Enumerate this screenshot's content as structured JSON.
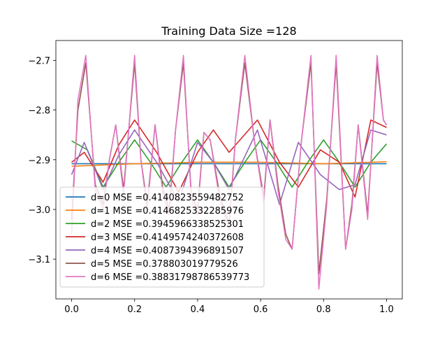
{
  "chart_data": {
    "type": "line",
    "title": "Training Data Size =128",
    "xlabel": "",
    "ylabel": "",
    "xlim": [
      -0.05,
      1.05
    ],
    "ylim": [
      -3.18,
      -2.66
    ],
    "xticks": [
      "0.0",
      "0.2",
      "0.4",
      "0.6",
      "0.8",
      "1.0"
    ],
    "xtick_values": [
      0.0,
      0.2,
      0.4,
      0.6,
      0.8,
      1.0
    ],
    "yticks": [
      "−2.7",
      "−2.8",
      "−2.9",
      "−3.0",
      "−3.1"
    ],
    "ytick_values": [
      -2.7,
      -2.8,
      -2.9,
      -3.0,
      -3.1
    ],
    "grid": false,
    "legend_position": "lower-left",
    "series": [
      {
        "name": "d=0 MSE =0.4140823559482752",
        "color": "#1f77b4",
        "x": [
          0.0,
          0.25,
          0.5,
          0.75,
          1.0
        ],
        "y": [
          -2.908,
          -2.908,
          -2.908,
          -2.908,
          -2.908
        ]
      },
      {
        "name": "d=1 MSE =0.414682533228597​6",
        "color": "#ff7f0e",
        "x": [
          0.0,
          0.2,
          0.4,
          0.6,
          0.8,
          1.0
        ],
        "y": [
          -2.913,
          -2.908,
          -2.905,
          -2.905,
          -2.908,
          -2.904
        ]
      },
      {
        "name": "d=2 MSE =0.3945966338525301",
        "color": "#2ca02c",
        "x": [
          0.0,
          0.05,
          0.1,
          0.15,
          0.2,
          0.25,
          0.3,
          0.35,
          0.4,
          0.45,
          0.5,
          0.55,
          0.6,
          0.65,
          0.7,
          0.75,
          0.8,
          0.85,
          0.9,
          0.95,
          1.0
        ],
        "y": [
          -2.862,
          -2.88,
          -2.955,
          -2.905,
          -2.86,
          -2.905,
          -2.955,
          -2.905,
          -2.86,
          -2.905,
          -2.955,
          -2.905,
          -2.86,
          -2.905,
          -2.955,
          -2.905,
          -2.86,
          -2.905,
          -2.955,
          -2.905,
          -2.868
        ]
      },
      {
        "name": "d=3 MSE =0.4149574240372608",
        "color": "#d62728",
        "x": [
          0.0,
          0.04,
          0.1,
          0.15,
          0.2,
          0.27,
          0.34,
          0.4,
          0.45,
          0.5,
          0.59,
          0.66,
          0.72,
          0.79,
          0.85,
          0.9,
          0.95,
          1.0
        ],
        "y": [
          -2.905,
          -2.885,
          -2.945,
          -2.87,
          -2.82,
          -2.885,
          -2.965,
          -2.885,
          -2.84,
          -2.885,
          -2.82,
          -2.905,
          -2.955,
          -2.88,
          -2.905,
          -2.975,
          -2.82,
          -2.835
        ]
      },
      {
        "name": "d=4 MSE =0.4087394396891507",
        "color": "#9467bd",
        "x": [
          0.0,
          0.04,
          0.1,
          0.15,
          0.2,
          0.27,
          0.34,
          0.4,
          0.45,
          0.5,
          0.59,
          0.66,
          0.72,
          0.79,
          0.85,
          0.9,
          0.95,
          1.0
        ],
        "y": [
          -2.93,
          -2.865,
          -2.96,
          -2.89,
          -2.84,
          -2.905,
          -2.985,
          -2.865,
          -2.905,
          -2.96,
          -2.84,
          -2.99,
          -2.865,
          -2.93,
          -2.96,
          -2.95,
          -2.84,
          -2.85
        ]
      },
      {
        "name": "d=5 MSE =0.378803019779526",
        "color": "#8c564b",
        "x": [
          0.0,
          0.02,
          0.045,
          0.075,
          0.1,
          0.12,
          0.14,
          0.165,
          0.18,
          0.2,
          0.22,
          0.24,
          0.265,
          0.29,
          0.31,
          0.33,
          0.355,
          0.38,
          0.4,
          0.42,
          0.44,
          0.47,
          0.5,
          0.52,
          0.55,
          0.58,
          0.61,
          0.63,
          0.655,
          0.68,
          0.7,
          0.73,
          0.76,
          0.785,
          0.81,
          0.84,
          0.87,
          0.89,
          0.91,
          0.94,
          0.97,
          0.99,
          1.0
        ],
        "y": [
          -3.02,
          -2.8,
          -2.705,
          -2.95,
          -2.99,
          -2.9,
          -2.83,
          -2.96,
          -2.85,
          -2.705,
          -2.9,
          -2.99,
          -2.83,
          -2.96,
          -3.0,
          -2.84,
          -2.705,
          -2.97,
          -3.0,
          -2.845,
          -2.86,
          -2.97,
          -3.03,
          -2.86,
          -2.705,
          -2.86,
          -2.975,
          -2.82,
          -2.95,
          -3.05,
          -3.08,
          -2.86,
          -2.705,
          -3.13,
          -2.98,
          -2.705,
          -3.08,
          -2.99,
          -2.83,
          -3.01,
          -2.705,
          -2.82,
          -2.83
        ]
      },
      {
        "name": "d=6 MSE =0.38831798786539773",
        "color": "#e377c2",
        "x": [
          0.0,
          0.02,
          0.045,
          0.075,
          0.1,
          0.12,
          0.14,
          0.165,
          0.18,
          0.2,
          0.22,
          0.24,
          0.265,
          0.29,
          0.31,
          0.33,
          0.355,
          0.38,
          0.4,
          0.42,
          0.44,
          0.47,
          0.5,
          0.52,
          0.55,
          0.58,
          0.61,
          0.63,
          0.655,
          0.68,
          0.7,
          0.73,
          0.76,
          0.785,
          0.81,
          0.84,
          0.87,
          0.89,
          0.91,
          0.94,
          0.97,
          0.99,
          1.0
        ],
        "y": [
          -3.05,
          -2.78,
          -2.69,
          -2.96,
          -3.0,
          -2.9,
          -2.83,
          -2.97,
          -2.85,
          -2.69,
          -2.9,
          -3.0,
          -2.83,
          -2.97,
          -3.01,
          -2.84,
          -2.69,
          -2.98,
          -3.01,
          -2.845,
          -2.86,
          -2.98,
          -3.04,
          -2.86,
          -2.69,
          -2.86,
          -2.985,
          -2.82,
          -2.96,
          -3.06,
          -3.08,
          -2.86,
          -2.69,
          -3.16,
          -2.99,
          -2.69,
          -3.08,
          -3.0,
          -2.83,
          -3.02,
          -2.69,
          -2.82,
          -2.83
        ]
      }
    ]
  }
}
